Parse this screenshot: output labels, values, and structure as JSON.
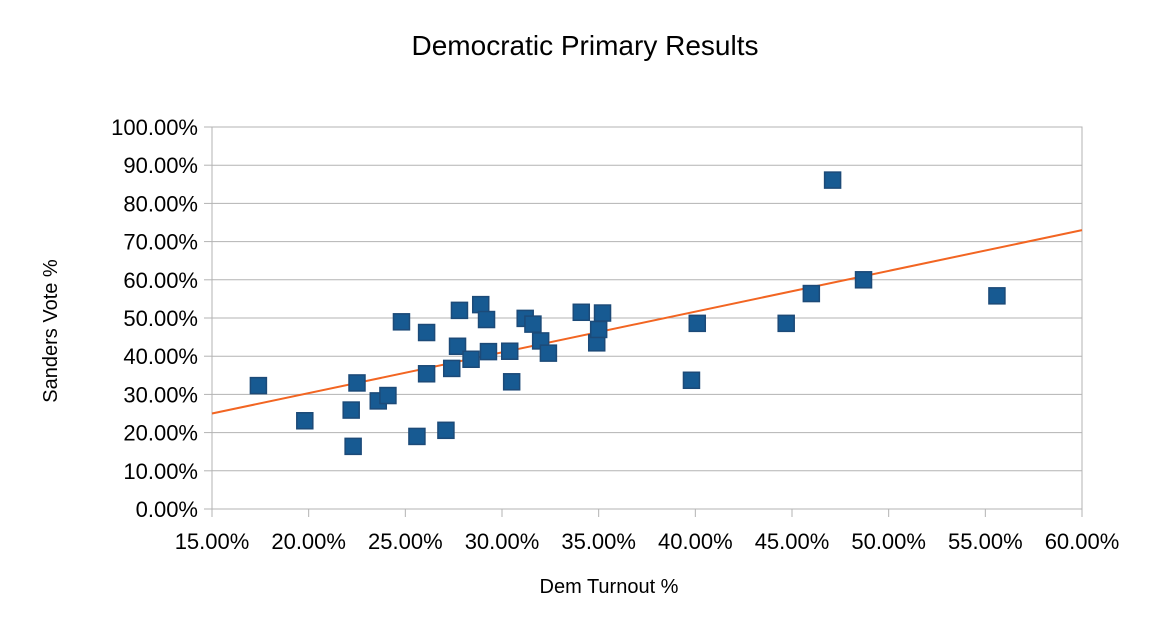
{
  "chart_data": {
    "type": "scatter",
    "title": "Democratic Primary Results",
    "xlabel": "Dem Turnout %",
    "ylabel": "Sanders  Vote  %",
    "xlim": [
      0.15,
      0.6
    ],
    "ylim": [
      0.0,
      1.0
    ],
    "x_ticks": [
      0.15,
      0.2,
      0.25,
      0.3,
      0.35,
      0.4,
      0.45,
      0.5,
      0.55,
      0.6
    ],
    "y_ticks": [
      0.0,
      0.1,
      0.2,
      0.3,
      0.4,
      0.5,
      0.6,
      0.7,
      0.8,
      0.9,
      1.0
    ],
    "x_tick_labels": [
      "15.00%",
      "20.00%",
      "25.00%",
      "30.00%",
      "35.00%",
      "40.00%",
      "45.00%",
      "50.00%",
      "55.00%",
      "60.00%"
    ],
    "y_tick_labels": [
      "0.00%",
      "10.00%",
      "20.00%",
      "30.00%",
      "40.00%",
      "50.00%",
      "60.00%",
      "70.00%",
      "80.00%",
      "90.00%",
      "100.00%"
    ],
    "grid": true,
    "legend": "none",
    "marker_color": "#175a92",
    "trendline_color": "#f26522",
    "trendline": {
      "x": [
        0.15,
        0.6
      ],
      "y": [
        0.25,
        0.73
      ]
    },
    "points": [
      {
        "x": 0.174,
        "y": 0.323
      },
      {
        "x": 0.198,
        "y": 0.231
      },
      {
        "x": 0.222,
        "y": 0.259
      },
      {
        "x": 0.223,
        "y": 0.164
      },
      {
        "x": 0.225,
        "y": 0.33
      },
      {
        "x": 0.236,
        "y": 0.283
      },
      {
        "x": 0.241,
        "y": 0.297
      },
      {
        "x": 0.248,
        "y": 0.49
      },
      {
        "x": 0.256,
        "y": 0.19
      },
      {
        "x": 0.261,
        "y": 0.354
      },
      {
        "x": 0.261,
        "y": 0.462
      },
      {
        "x": 0.271,
        "y": 0.206
      },
      {
        "x": 0.274,
        "y": 0.368
      },
      {
        "x": 0.277,
        "y": 0.426
      },
      {
        "x": 0.278,
        "y": 0.52
      },
      {
        "x": 0.284,
        "y": 0.392
      },
      {
        "x": 0.289,
        "y": 0.535
      },
      {
        "x": 0.292,
        "y": 0.496
      },
      {
        "x": 0.293,
        "y": 0.412
      },
      {
        "x": 0.304,
        "y": 0.413
      },
      {
        "x": 0.305,
        "y": 0.333
      },
      {
        "x": 0.312,
        "y": 0.499
      },
      {
        "x": 0.316,
        "y": 0.484
      },
      {
        "x": 0.32,
        "y": 0.44
      },
      {
        "x": 0.324,
        "y": 0.408
      },
      {
        "x": 0.341,
        "y": 0.515
      },
      {
        "x": 0.349,
        "y": 0.435
      },
      {
        "x": 0.35,
        "y": 0.47
      },
      {
        "x": 0.352,
        "y": 0.513
      },
      {
        "x": 0.398,
        "y": 0.337
      },
      {
        "x": 0.401,
        "y": 0.486
      },
      {
        "x": 0.447,
        "y": 0.486
      },
      {
        "x": 0.46,
        "y": 0.564
      },
      {
        "x": 0.471,
        "y": 0.861
      },
      {
        "x": 0.487,
        "y": 0.6
      },
      {
        "x": 0.556,
        "y": 0.558
      }
    ]
  }
}
